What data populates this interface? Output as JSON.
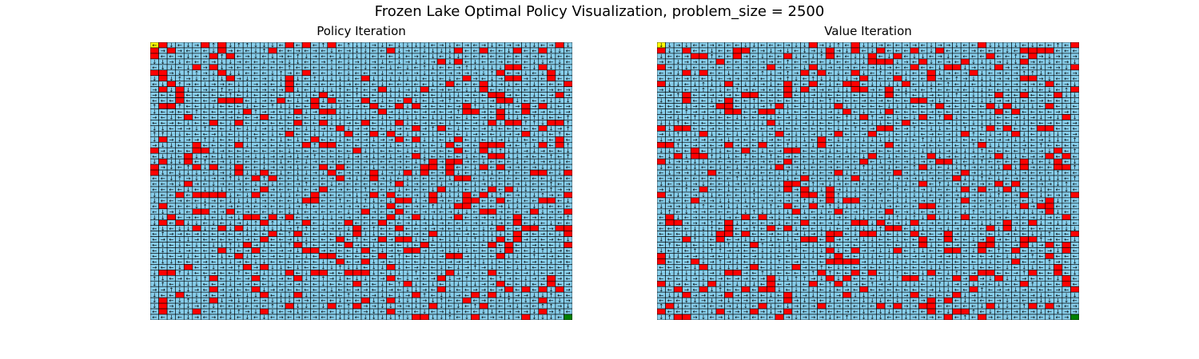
{
  "figure": {
    "suptitle": "Frozen Lake Optimal Policy Visualization, problem_size = 2500"
  },
  "chart_data": [
    {
      "type": "heatmap",
      "title": "Policy Iteration",
      "grid_size": [
        50,
        50
      ],
      "xlabel": "",
      "ylabel": "",
      "axes_visible": false,
      "legend": "none",
      "cell_types": {
        "frozen": "#87ceeb",
        "hole": "#ff0000",
        "start": "#ffff00",
        "goal": "#008000"
      },
      "start": [
        0,
        0
      ],
      "goal": [
        49,
        49
      ],
      "hole_density": 0.14,
      "action_glyphs": [
        "←",
        "↓",
        "→",
        "↑"
      ],
      "arrow_mix": [
        0.42,
        0.3,
        0.22,
        0.06
      ],
      "cells_outline": "#000000"
    },
    {
      "type": "heatmap",
      "title": "Value Iteration",
      "grid_size": [
        50,
        50
      ],
      "xlabel": "",
      "ylabel": "",
      "axes_visible": false,
      "legend": "none",
      "cell_types": {
        "frozen": "#87ceeb",
        "hole": "#ff0000",
        "start": "#ffff00",
        "goal": "#008000"
      },
      "start": [
        0,
        0
      ],
      "goal": [
        49,
        49
      ],
      "hole_density": 0.14,
      "action_glyphs": [
        "←",
        "↓",
        "→",
        "↑"
      ],
      "arrow_mix": [
        0.42,
        0.3,
        0.22,
        0.06
      ],
      "cells_outline": "#000000"
    }
  ]
}
